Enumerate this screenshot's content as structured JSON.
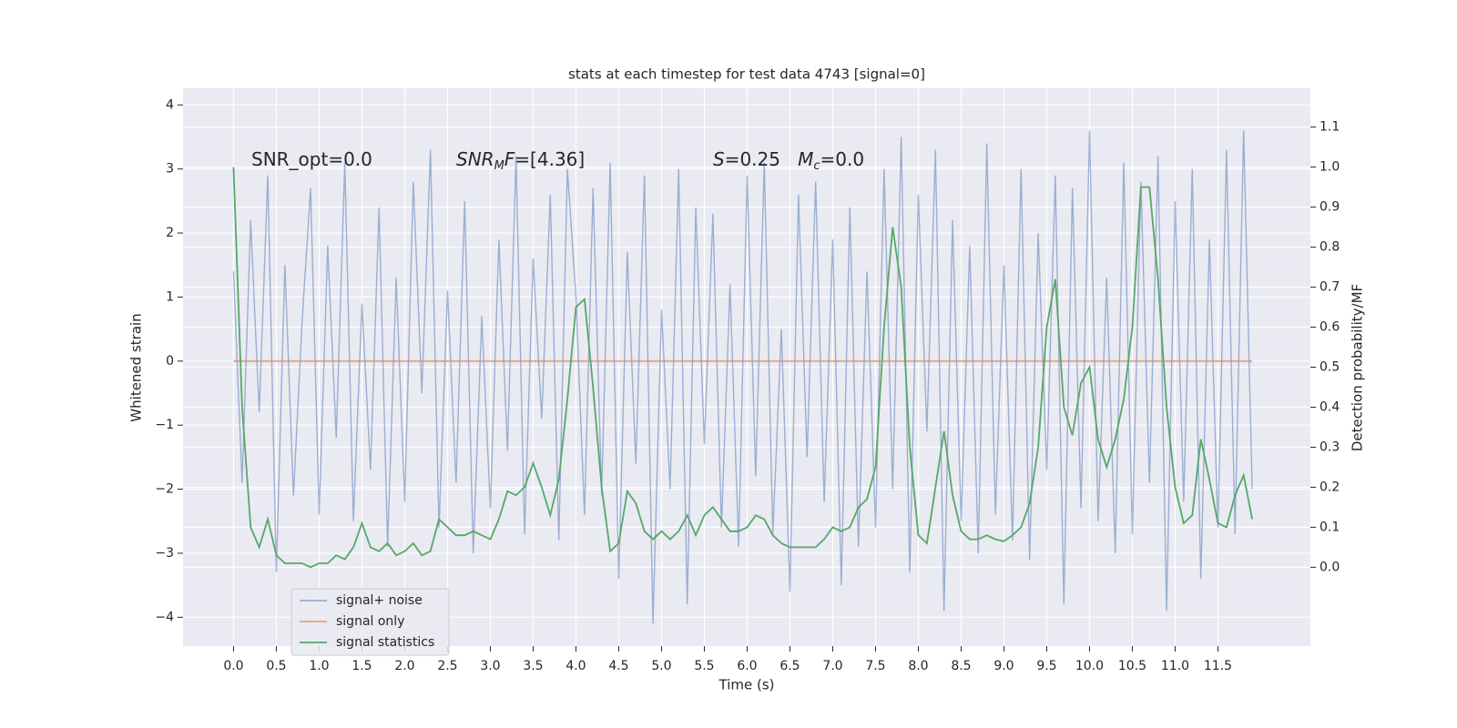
{
  "chart_data": {
    "type": "line",
    "title": "stats at each timestep for test data 4743 [signal=0]",
    "x_label": "Time (s)",
    "y_label": "Whitened strain",
    "y2_label": "Detection probability/MF",
    "annotations": [
      [
        {
          "text": "SNR_opt=0.0"
        }
      ],
      [
        {
          "text": "SNR",
          "style": "italic"
        },
        {
          "text": "M",
          "style": "sub"
        },
        {
          "text": "F",
          "style": "italic"
        },
        {
          "text": "=[4.36]"
        }
      ],
      [
        {
          "text": "S",
          "style": "italic"
        },
        {
          "text": "=0.25   "
        },
        {
          "text": "M",
          "style": "italic"
        },
        {
          "text": "c",
          "style": "sub"
        },
        {
          "text": "=0.0"
        }
      ]
    ],
    "x": [
      0.0,
      0.1,
      0.2,
      0.3,
      0.4,
      0.5,
      0.6,
      0.7,
      0.8,
      0.9,
      1.0,
      1.1,
      1.2,
      1.3,
      1.4,
      1.5,
      1.6,
      1.7,
      1.8,
      1.9,
      2.0,
      2.1,
      2.2,
      2.3,
      2.4,
      2.5,
      2.6,
      2.7,
      2.8,
      2.9,
      3.0,
      3.1,
      3.2,
      3.3,
      3.4,
      3.5,
      3.6,
      3.7,
      3.8,
      3.9,
      4.0,
      4.1,
      4.2,
      4.3,
      4.4,
      4.5,
      4.6,
      4.7,
      4.8,
      4.9,
      5.0,
      5.1,
      5.2,
      5.3,
      5.4,
      5.5,
      5.6,
      5.7,
      5.8,
      5.9,
      6.0,
      6.1,
      6.2,
      6.3,
      6.4,
      6.5,
      6.6,
      6.7,
      6.8,
      6.9,
      7.0,
      7.1,
      7.2,
      7.3,
      7.4,
      7.5,
      7.6,
      7.7,
      7.8,
      7.9,
      8.0,
      8.1,
      8.2,
      8.3,
      8.4,
      8.5,
      8.6,
      8.7,
      8.8,
      8.9,
      9.0,
      9.1,
      9.2,
      9.3,
      9.4,
      9.5,
      9.6,
      9.7,
      9.8,
      9.9,
      10.0,
      10.1,
      10.2,
      10.3,
      10.4,
      10.5,
      10.6,
      10.7,
      10.8,
      10.9,
      11.0,
      11.1,
      11.2,
      11.3,
      11.4,
      11.5,
      11.6,
      11.7,
      11.8,
      11.9
    ],
    "series": [
      {
        "name": "signal+ noise",
        "color": "#4c72b0",
        "alpha": 0.5,
        "axis": "y",
        "values": [
          1.4,
          -1.9,
          2.2,
          -0.8,
          2.9,
          -3.3,
          1.5,
          -2.1,
          0.6,
          2.7,
          -2.4,
          1.8,
          -1.2,
          3.1,
          -2.5,
          0.9,
          -1.7,
          2.4,
          -2.9,
          1.3,
          -2.2,
          2.8,
          -0.5,
          3.3,
          -2.6,
          1.1,
          -1.9,
          2.5,
          -3.0,
          0.7,
          -2.3,
          1.9,
          -1.4,
          3.2,
          -2.7,
          1.6,
          -0.9,
          2.6,
          -2.8,
          3.0,
          1.0,
          -2.4,
          2.7,
          -2.1,
          3.1,
          -3.4,
          1.7,
          -1.6,
          2.9,
          -4.1,
          0.8,
          -2.0,
          3.0,
          -3.8,
          2.4,
          -1.3,
          2.3,
          -2.6,
          1.2,
          -2.9,
          2.9,
          -1.8,
          3.1,
          -2.7,
          0.5,
          -3.6,
          2.6,
          -1.5,
          2.8,
          -2.2,
          1.9,
          -3.5,
          2.4,
          -2.9,
          1.4,
          -2.6,
          3.0,
          -2.0,
          3.5,
          -3.3,
          2.6,
          -1.1,
          3.3,
          -3.9,
          2.2,
          -2.5,
          1.8,
          -3.0,
          3.4,
          -2.4,
          1.5,
          -2.8,
          3.0,
          -3.1,
          2.0,
          -1.7,
          2.9,
          -3.8,
          2.7,
          -2.3,
          3.6,
          -2.5,
          1.3,
          -3.0,
          3.1,
          -2.7,
          2.8,
          -1.9,
          3.2,
          -3.9,
          2.5,
          -2.2,
          3.0,
          -3.4,
          1.9,
          -2.6,
          3.3,
          -2.7,
          3.6,
          -2.0
        ]
      },
      {
        "name": "signal only",
        "color": "#dd8452",
        "alpha": 0.7,
        "axis": "y",
        "values": [
          0,
          0,
          0,
          0,
          0,
          0,
          0,
          0,
          0,
          0,
          0,
          0,
          0,
          0,
          0,
          0,
          0,
          0,
          0,
          0,
          0,
          0,
          0,
          0,
          0,
          0,
          0,
          0,
          0,
          0,
          0,
          0,
          0,
          0,
          0,
          0,
          0,
          0,
          0,
          0,
          0,
          0,
          0,
          0,
          0,
          0,
          0,
          0,
          0,
          0,
          0,
          0,
          0,
          0,
          0,
          0,
          0,
          0,
          0,
          0,
          0,
          0,
          0,
          0,
          0,
          0,
          0,
          0,
          0,
          0,
          0,
          0,
          0,
          0,
          0,
          0,
          0,
          0,
          0,
          0,
          0,
          0,
          0,
          0,
          0,
          0,
          0,
          0,
          0,
          0,
          0,
          0,
          0,
          0,
          0,
          0,
          0,
          0,
          0,
          0,
          0,
          0,
          0,
          0,
          0,
          0,
          0,
          0,
          0,
          0,
          0,
          0,
          0,
          0,
          0,
          0,
          0,
          0,
          0,
          0
        ]
      },
      {
        "name": "signal statistics",
        "color": "#55a868",
        "alpha": 1,
        "axis": "y2",
        "values": [
          1.0,
          0.4,
          0.1,
          0.05,
          0.12,
          0.03,
          0.01,
          0.01,
          0.01,
          0.0,
          0.01,
          0.01,
          0.03,
          0.02,
          0.05,
          0.11,
          0.05,
          0.04,
          0.06,
          0.03,
          0.04,
          0.06,
          0.03,
          0.04,
          0.12,
          0.1,
          0.08,
          0.08,
          0.09,
          0.08,
          0.07,
          0.12,
          0.19,
          0.18,
          0.2,
          0.26,
          0.2,
          0.13,
          0.22,
          0.42,
          0.65,
          0.67,
          0.45,
          0.2,
          0.04,
          0.06,
          0.19,
          0.16,
          0.09,
          0.07,
          0.09,
          0.07,
          0.09,
          0.13,
          0.08,
          0.13,
          0.15,
          0.12,
          0.09,
          0.09,
          0.1,
          0.13,
          0.12,
          0.08,
          0.06,
          0.05,
          0.05,
          0.05,
          0.05,
          0.07,
          0.1,
          0.09,
          0.1,
          0.15,
          0.17,
          0.25,
          0.6,
          0.85,
          0.7,
          0.3,
          0.08,
          0.06,
          0.2,
          0.34,
          0.18,
          0.09,
          0.07,
          0.07,
          0.08,
          0.07,
          0.065,
          0.08,
          0.1,
          0.16,
          0.3,
          0.6,
          0.72,
          0.4,
          0.33,
          0.46,
          0.5,
          0.32,
          0.25,
          0.32,
          0.42,
          0.6,
          0.95,
          0.95,
          0.72,
          0.4,
          0.2,
          0.11,
          0.13,
          0.32,
          0.22,
          0.11,
          0.1,
          0.18,
          0.23,
          0.12
        ]
      }
    ],
    "xlim": [
      -0.59,
      12.58
    ],
    "xticks": [
      {
        "value": 0,
        "label": "0.0"
      },
      0.5,
      {
        "value": 1,
        "label": "1.0"
      },
      1.5,
      {
        "value": 2,
        "label": "2.0"
      },
      2.5,
      {
        "value": 3,
        "label": "3.0"
      },
      3.5,
      {
        "value": 4,
        "label": "4.0"
      },
      4.5,
      {
        "value": 5,
        "label": "5.0"
      },
      5.5,
      {
        "value": 6,
        "label": "6.0"
      },
      6.5,
      {
        "value": 7,
        "label": "7.0"
      },
      7.5,
      {
        "value": 8,
        "label": "8.0"
      },
      8.5,
      {
        "value": 9,
        "label": "9.0"
      },
      9.5,
      {
        "value": 10,
        "label": "10.0"
      },
      10.5,
      {
        "value": 11,
        "label": "11.0"
      },
      11.5
    ],
    "ylim": [
      -4.45,
      4.26
    ],
    "yticks": [
      {
        "value": -4,
        "label": "−4"
      },
      {
        "value": -3,
        "label": "−3"
      },
      {
        "value": -2,
        "label": "−2"
      },
      {
        "value": -1,
        "label": "−1"
      },
      0,
      1,
      2,
      3,
      4
    ],
    "y2lim": [
      -0.197,
      1.197
    ],
    "y2ticks": [
      {
        "value": 0,
        "label": "0.0"
      },
      0.1,
      0.2,
      0.3,
      0.4,
      0.5,
      0.6,
      0.7,
      0.8,
      0.9,
      {
        "value": 1,
        "label": "1.0"
      },
      1.1
    ],
    "grid": true,
    "background": "#eaeaf2",
    "legend": "lower left"
  }
}
